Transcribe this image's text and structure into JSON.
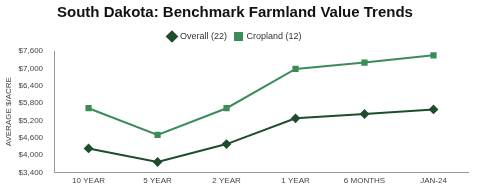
{
  "chart_data": {
    "type": "line",
    "title": "South Dakota: Benchmark Farmland Value Trends",
    "y_label": "AVERAGE $/ACRE",
    "categories": [
      "10 YEAR",
      "5 YEAR",
      "2 YEAR",
      "1 YEAR",
      "6 MONTHS",
      "JAN-24"
    ],
    "series": [
      {
        "name": "Overall (22)",
        "color": "#1e4d2e",
        "marker": "diamond",
        "values": [
          4230,
          3760,
          4380,
          5270,
          5420,
          5580
        ]
      },
      {
        "name": "Cropland (12)",
        "color": "#3c8c5a",
        "marker": "square",
        "values": [
          5620,
          4700,
          5620,
          6980,
          7200,
          7450
        ]
      }
    ],
    "ylim": [
      3400,
      7600
    ],
    "yticks": [
      {
        "value": 3400,
        "label": "$3,400"
      },
      {
        "value": 4000,
        "label": "$4,000"
      },
      {
        "value": 4600,
        "label": "$4,600"
      },
      {
        "value": 5200,
        "label": "$5,200"
      },
      {
        "value": 5800,
        "label": "$5,800"
      },
      {
        "value": 6400,
        "label": "$6,400"
      },
      {
        "value": 7000,
        "label": "$7,000"
      },
      {
        "value": 7600,
        "label": "$7,600"
      }
    ],
    "grid": false,
    "legend": "top"
  }
}
